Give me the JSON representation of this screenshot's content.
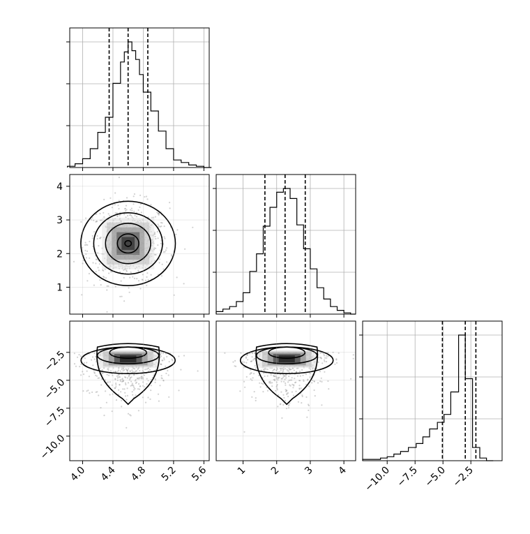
{
  "chart_data": {
    "type": "corner",
    "parameters": [
      {
        "id": "p0",
        "range": [
          3.83,
          5.67
        ],
        "ticks": [
          "4.0",
          "4.4",
          "4.8",
          "5.2",
          "5.6"
        ],
        "tick_values": [
          4.0,
          4.4,
          4.8,
          5.2,
          5.6
        ],
        "quantiles": [
          4.35,
          4.6,
          4.86
        ],
        "hist": {
          "edges": [
            3.8,
            3.9,
            4.0,
            4.1,
            4.2,
            4.3,
            4.4,
            4.5,
            4.55,
            4.6,
            4.65,
            4.7,
            4.75,
            4.8,
            4.9,
            5.0,
            5.1,
            5.2,
            5.3,
            5.4,
            5.5,
            5.6,
            5.7
          ],
          "counts": [
            0.01,
            0.03,
            0.07,
            0.15,
            0.28,
            0.4,
            0.67,
            0.84,
            0.92,
            1.0,
            0.93,
            0.86,
            0.74,
            0.6,
            0.45,
            0.29,
            0.15,
            0.06,
            0.04,
            0.02,
            0.01,
            0.0
          ]
        }
      },
      {
        "id": "p1",
        "range": [
          0.2,
          4.35
        ],
        "ticks": [
          "1",
          "2",
          "3",
          "4"
        ],
        "tick_values": [
          1,
          2,
          3,
          4
        ],
        "quantiles": [
          1.65,
          2.25,
          2.85
        ],
        "hist": {
          "edges": [
            0.2,
            0.4,
            0.6,
            0.8,
            1.0,
            1.2,
            1.4,
            1.6,
            1.8,
            2.0,
            2.2,
            2.4,
            2.6,
            2.8,
            3.0,
            3.2,
            3.4,
            3.6,
            3.8,
            4.0,
            4.2,
            4.35
          ],
          "counts": [
            0.02,
            0.04,
            0.06,
            0.1,
            0.17,
            0.34,
            0.48,
            0.7,
            0.85,
            0.97,
            1.0,
            0.92,
            0.71,
            0.52,
            0.36,
            0.21,
            0.12,
            0.06,
            0.03,
            0.01,
            0.0
          ]
        }
      },
      {
        "id": "p2",
        "range": [
          -12.2,
          0.3
        ],
        "ticks": [
          "−10.0",
          "−7.5",
          "−5.0",
          "−2.5"
        ],
        "tick_values": [
          -10.0,
          -7.5,
          -5.0,
          -2.5
        ],
        "quantiles": [
          -5.05,
          -3.0,
          -2.05
        ],
        "hist": {
          "edges": [
            -12.2,
            -11.3,
            -10.6,
            -10.0,
            -9.4,
            -8.8,
            -8.1,
            -7.4,
            -6.8,
            -6.2,
            -5.5,
            -4.9,
            -4.3,
            -3.6,
            -3.0,
            -2.35,
            -1.7,
            -1.1,
            -0.5
          ],
          "counts": [
            0.01,
            0.01,
            0.02,
            0.03,
            0.05,
            0.07,
            0.1,
            0.13,
            0.18,
            0.24,
            0.29,
            0.35,
            0.52,
            0.95,
            0.62,
            0.1,
            0.02,
            0.0
          ]
        }
      }
    ],
    "pairs": [
      {
        "x": "p0",
        "y": "p1",
        "mean": [
          4.6,
          2.3
        ],
        "sd": [
          0.27,
          0.6
        ],
        "rho": 0.0,
        "points": 700
      },
      {
        "x": "p0",
        "y": "p2",
        "mean": [
          4.6,
          -2.9
        ],
        "sd": [
          0.27,
          2.0
        ],
        "rho": 0.0,
        "points": 700
      },
      {
        "x": "p1",
        "y": "p2",
        "mean": [
          2.3,
          -2.9
        ],
        "sd": [
          0.6,
          2.0
        ],
        "rho": 0.0,
        "points": 700
      }
    ],
    "grid": true,
    "quantile_line_style": "dashed"
  },
  "colors": {
    "axis": "#000000",
    "grid": "#b0b0b0",
    "hist_line": "#000000",
    "points": "#9a9a9a",
    "contour": "#000000"
  }
}
